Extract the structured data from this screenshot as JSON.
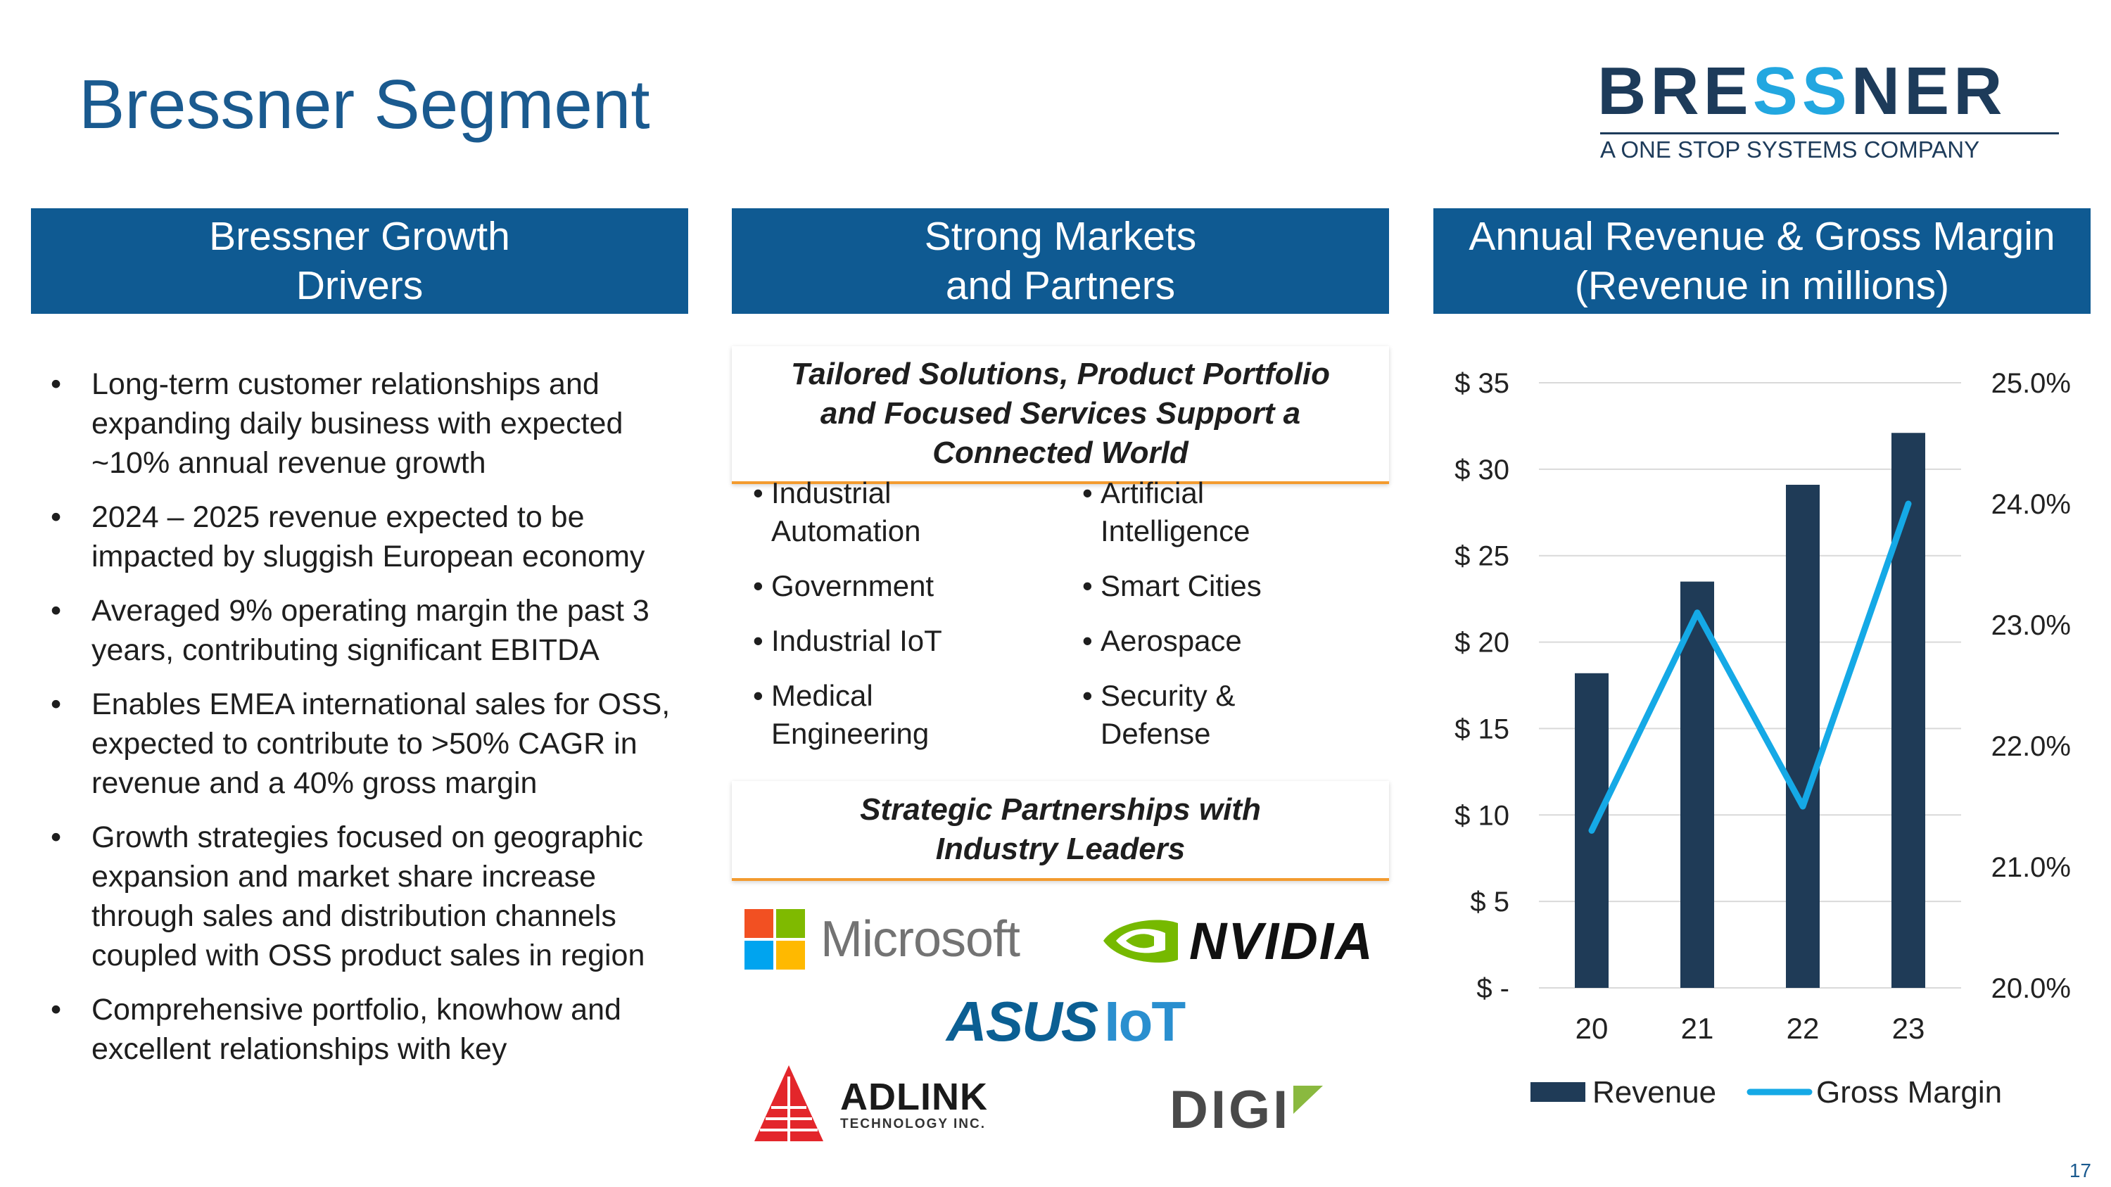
{
  "page": {
    "title": "Bressner Segment",
    "page_number": "17"
  },
  "logo": {
    "word_part1": "BRE",
    "word_accent": "SS",
    "word_part2": "NER",
    "tagline": "A ONE STOP SYSTEMS COMPANY",
    "colors": {
      "text": "#1d3b5a",
      "accent": "#22a7e0"
    }
  },
  "columns": {
    "left_header": {
      "line1": "Bressner Growth",
      "line2": "Drivers"
    },
    "mid_header": {
      "line1": "Strong Markets",
      "line2": "and Partners"
    },
    "right_header": {
      "line1": "Annual Revenue & Gross Margin",
      "line2": "(Revenue in millions)"
    }
  },
  "drivers": [
    "Long-term customer relationships and expanding daily business with expected ~10% annual revenue growth",
    "2024 – 2025 revenue expected to be impacted by sluggish European economy",
    "Averaged 9% operating margin the past 3 years, contributing significant EBITDA",
    "Enables EMEA international sales for OSS, expected to contribute to >50% CAGR in revenue and a 40% gross margin",
    "Growth strategies focused on geographic expansion and market share increase through sales and distribution channels coupled with OSS product sales in region",
    "Comprehensive portfolio, knowhow and excellent relationships with key"
  ],
  "markets": {
    "callout": {
      "line1": "Tailored Solutions, Product Portfolio",
      "line2": "and Focused Services Support a",
      "line3": "Connected World"
    },
    "left": [
      {
        "l1": "Industrial",
        "l2": "Automation"
      },
      {
        "l1": "Government",
        "l2": ""
      },
      {
        "l1": "Industrial IoT",
        "l2": ""
      },
      {
        "l1": "Medical",
        "l2": "Engineering"
      }
    ],
    "right": [
      {
        "l1": "Artificial",
        "l2": "Intelligence"
      },
      {
        "l1": "Smart Cities",
        "l2": ""
      },
      {
        "l1": "Aerospace",
        "l2": ""
      },
      {
        "l1": "Security &",
        "l2": "Defense"
      }
    ]
  },
  "partners": {
    "callout": {
      "line1": "Strategic Partnerships with",
      "line2": "Industry Leaders"
    },
    "microsoft": {
      "name": "Microsoft",
      "icon": "microsoft-logo-icon",
      "colors": [
        "#f25022",
        "#7fba00",
        "#00a4ef",
        "#ffb900"
      ]
    },
    "nvidia": {
      "name": "NVIDIA",
      "icon": "nvidia-eye-icon",
      "color": "#76b900"
    },
    "asus": {
      "name": "ASUS",
      "suffix": "IoT"
    },
    "adlink": {
      "name": "ADLINK",
      "sub": "TECHNOLOGY INC.",
      "icon": "adlink-triangle-icon",
      "color": "#e3262b"
    },
    "digi": {
      "name": "DIGI",
      "icon": "digi-mark-icon",
      "color": "#8ab93f"
    }
  },
  "chart_data": {
    "type": "bar",
    "categories": [
      "20",
      "21",
      "22",
      "23"
    ],
    "series": [
      {
        "name": "Revenue",
        "type": "bar",
        "axis": "left",
        "values": [
          18.2,
          23.5,
          29.1,
          32.1
        ],
        "color": "#1f3b57"
      },
      {
        "name": "Gross Margin",
        "type": "line",
        "axis": "right",
        "values": [
          21.3,
          23.1,
          21.5,
          24.0
        ],
        "color": "#15a9e6"
      }
    ],
    "left_axis": {
      "min": 0,
      "max": 35,
      "step": 5,
      "tick_labels": [
        "$ -",
        "$ 5",
        "$ 10",
        "$ 15",
        "$ 20",
        "$ 25",
        "$ 30",
        "$ 35"
      ]
    },
    "right_axis": {
      "min": 20,
      "max": 25,
      "step": 1,
      "tick_labels": [
        "20.0%",
        "21.0%",
        "22.0%",
        "23.0%",
        "24.0%",
        "25.0%"
      ]
    },
    "legend": {
      "position": "bottom",
      "entries": [
        "Revenue",
        "Gross Margin"
      ]
    },
    "grid": true
  }
}
